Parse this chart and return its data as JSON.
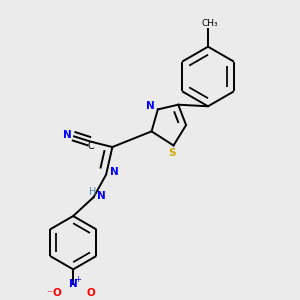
{
  "bg_color": "#ebebeb",
  "bond_color": "#000000",
  "atom_colors": {
    "N": "#0000ff",
    "S": "#ccaa00",
    "O": "#ff0000",
    "C": "#000000",
    "H": "#5588aa"
  },
  "lw": 1.4
}
